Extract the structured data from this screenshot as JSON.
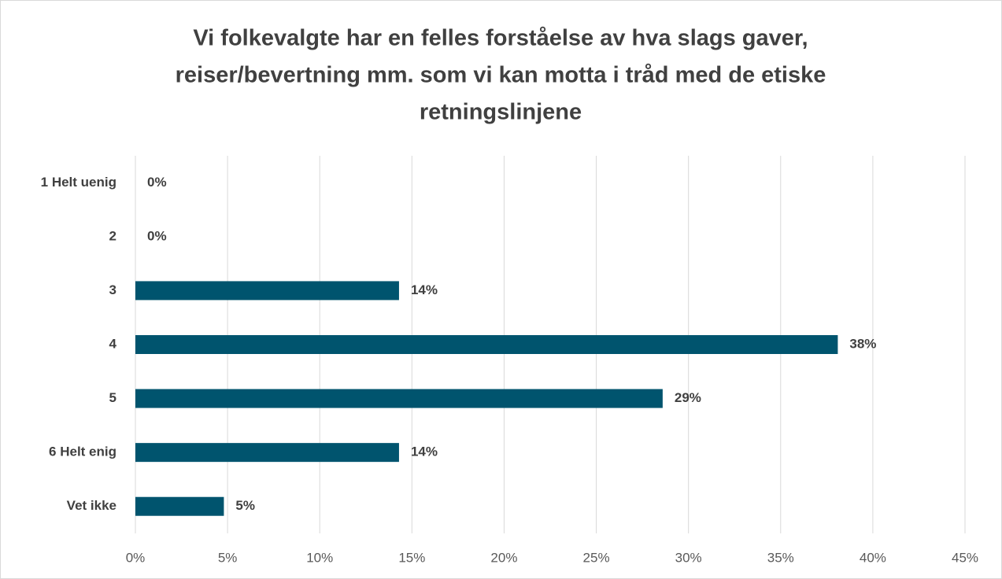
{
  "chart_data": {
    "type": "bar",
    "orientation": "horizontal",
    "title": [
      "Vi folkevalgte har en felles forståelse av hva slags gaver,",
      "reiser/bevertning mm. som vi kan motta i tråd med de etiske",
      "retningslinjene"
    ],
    "categories": [
      "1 Helt uenig",
      "2",
      "3",
      "4",
      "5",
      "6 Helt enig",
      "Vet ikke"
    ],
    "values": [
      0,
      0,
      14.3,
      38.1,
      28.6,
      14.3,
      4.8
    ],
    "value_labels": [
      "0%",
      "0%",
      "14%",
      "38%",
      "29%",
      "14%",
      "5%"
    ],
    "color": "#00546e",
    "xlim": [
      0,
      45
    ],
    "xticks": [
      {
        "value": 0,
        "label": "0%"
      },
      {
        "value": 5,
        "label": "5%"
      },
      {
        "value": 10,
        "label": "10%"
      },
      {
        "value": 15,
        "label": "15%"
      },
      {
        "value": 20,
        "label": "20%"
      },
      {
        "value": 25,
        "label": "25%"
      },
      {
        "value": 30,
        "label": "30%"
      },
      {
        "value": 35,
        "label": "35%"
      },
      {
        "value": 40,
        "label": "40%"
      },
      {
        "value": 45,
        "label": "45%"
      }
    ],
    "grid": true
  }
}
